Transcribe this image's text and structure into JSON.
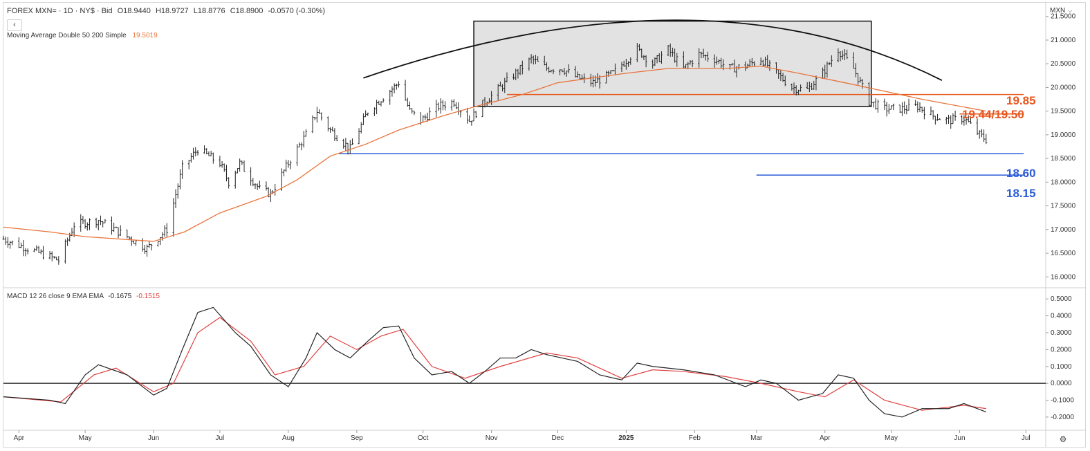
{
  "header": {
    "symbol": "FOREX MXN= · 1D · NY$ · Bid",
    "open": "O18.9440",
    "high": "H18.9727",
    "low": "L18.8776",
    "close": "C18.8900",
    "change": "-0.0570 (-0.30%)",
    "collapse_glyph": "‹"
  },
  "ma_legend": {
    "label": "Moving Average Double 50 200 Simple",
    "value": "19.5019"
  },
  "macd_legend": {
    "label": "MACD 12 26 close 9 EMA EMA",
    "macd_value": "-0.1675",
    "signal_value": "-0.1515"
  },
  "currency_selector": {
    "label": "MXN",
    "icon": "chevron-down-icon"
  },
  "settings_icon": "gear-icon",
  "colors": {
    "price_bars": "#222222",
    "ma": "#e8743b",
    "macd": "#222222",
    "signal": "#e04040",
    "level_orange": "#e8541a",
    "level_blue": "#2a5bd7",
    "box_fill": "#e2e2e2"
  },
  "annotations": [
    {
      "text": "19.85",
      "color": "#e8541a"
    },
    {
      "text": "19.44/19.50",
      "color": "#e8541a"
    },
    {
      "text": "18.60",
      "color": "#2a5bd7"
    },
    {
      "text": "18.15",
      "color": "#2a5bd7"
    }
  ],
  "chart_data": [
    {
      "type": "ohlc",
      "title": "FOREX MXN= · 1D · NY$ · Bid",
      "x_labels": [
        "Apr",
        "May",
        "Jun",
        "Jul",
        "Aug",
        "Sep",
        "Oct",
        "Nov",
        "Dec",
        "2025",
        "Feb",
        "Mar",
        "Apr",
        "May",
        "Jun",
        "Jul"
      ],
      "y_ticks": [
        "21.5000",
        "21.0000",
        "20.5000",
        "20.0000",
        "19.5000",
        "19.0000",
        "18.5000",
        "18.0000",
        "17.5000",
        "17.0000",
        "16.5000",
        "16.0000"
      ],
      "ylim": [
        15.8,
        21.7
      ],
      "close_path": [
        {
          "date": "2024-03-25",
          "value": 16.8
        },
        {
          "date": "2024-04-05",
          "value": 16.6
        },
        {
          "date": "2024-04-19",
          "value": 16.35
        },
        {
          "date": "2024-04-26",
          "value": 17.1
        },
        {
          "date": "2024-05-07",
          "value": 17.2
        },
        {
          "date": "2024-05-20",
          "value": 16.85
        },
        {
          "date": "2024-05-29",
          "value": 16.6
        },
        {
          "date": "2024-06-07",
          "value": 17.0
        },
        {
          "date": "2024-06-14",
          "value": 18.3
        },
        {
          "date": "2024-06-21",
          "value": 18.7
        },
        {
          "date": "2024-07-01",
          "value": 18.4
        },
        {
          "date": "2024-07-05",
          "value": 18.0
        },
        {
          "date": "2024-07-10",
          "value": 18.4
        },
        {
          "date": "2024-07-19",
          "value": 17.85
        },
        {
          "date": "2024-07-24",
          "value": 17.75
        },
        {
          "date": "2024-08-01",
          "value": 18.4
        },
        {
          "date": "2024-08-09",
          "value": 19.0
        },
        {
          "date": "2024-08-14",
          "value": 19.5
        },
        {
          "date": "2024-08-20",
          "value": 19.1
        },
        {
          "date": "2024-08-29",
          "value": 18.7
        },
        {
          "date": "2024-09-06",
          "value": 19.5
        },
        {
          "date": "2024-09-13",
          "value": 19.8
        },
        {
          "date": "2024-09-20",
          "value": 20.1
        },
        {
          "date": "2024-09-25",
          "value": 19.5
        },
        {
          "date": "2024-09-30",
          "value": 19.3
        },
        {
          "date": "2024-10-08",
          "value": 19.6
        },
        {
          "date": "2024-10-15",
          "value": 19.7
        },
        {
          "date": "2024-10-22",
          "value": 19.3
        },
        {
          "date": "2024-10-29",
          "value": 19.7
        },
        {
          "date": "2024-11-05",
          "value": 20.0
        },
        {
          "date": "2024-11-12",
          "value": 20.3
        },
        {
          "date": "2024-11-19",
          "value": 20.6
        },
        {
          "date": "2024-11-26",
          "value": 20.4
        },
        {
          "date": "2024-12-03",
          "value": 20.4
        },
        {
          "date": "2024-12-10",
          "value": 20.2
        },
        {
          "date": "2024-12-17",
          "value": 20.1
        },
        {
          "date": "2024-12-26",
          "value": 20.3
        },
        {
          "date": "2025-01-06",
          "value": 20.8
        },
        {
          "date": "2025-01-13",
          "value": 20.5
        },
        {
          "date": "2025-01-20",
          "value": 20.8
        },
        {
          "date": "2025-01-27",
          "value": 20.4
        },
        {
          "date": "2025-02-03",
          "value": 20.7
        },
        {
          "date": "2025-02-10",
          "value": 20.6
        },
        {
          "date": "2025-02-17",
          "value": 20.4
        },
        {
          "date": "2025-02-24",
          "value": 20.45
        },
        {
          "date": "2025-03-03",
          "value": 20.6
        },
        {
          "date": "2025-03-10",
          "value": 20.3
        },
        {
          "date": "2025-03-17",
          "value": 20.0
        },
        {
          "date": "2025-03-24",
          "value": 19.95
        },
        {
          "date": "2025-03-31",
          "value": 20.3
        },
        {
          "date": "2025-04-07",
          "value": 20.8
        },
        {
          "date": "2025-04-14",
          "value": 20.4
        },
        {
          "date": "2025-04-21",
          "value": 19.7
        },
        {
          "date": "2025-04-28",
          "value": 19.55
        },
        {
          "date": "2025-05-06",
          "value": 19.55
        },
        {
          "date": "2025-05-13",
          "value": 19.6
        },
        {
          "date": "2025-05-20",
          "value": 19.4
        },
        {
          "date": "2025-05-27",
          "value": 19.3
        },
        {
          "date": "2025-06-03",
          "value": 19.35
        },
        {
          "date": "2025-06-10",
          "value": 19.0
        },
        {
          "date": "2025-06-13",
          "value": 18.9
        }
      ],
      "series": [
        {
          "name": "Moving Average Double 50 200 Simple",
          "values": [
            {
              "date": "2024-03-25",
              "value": 17.05
            },
            {
              "date": "2024-04-15",
              "value": 16.95
            },
            {
              "date": "2024-05-01",
              "value": 16.85
            },
            {
              "date": "2024-06-01",
              "value": 16.75
            },
            {
              "date": "2024-06-15",
              "value": 16.95
            },
            {
              "date": "2024-07-01",
              "value": 17.35
            },
            {
              "date": "2024-07-22",
              "value": 17.7
            },
            {
              "date": "2024-08-05",
              "value": 18.05
            },
            {
              "date": "2024-08-20",
              "value": 18.55
            },
            {
              "date": "2024-09-05",
              "value": 18.8
            },
            {
              "date": "2024-09-20",
              "value": 19.1
            },
            {
              "date": "2024-10-10",
              "value": 19.4
            },
            {
              "date": "2024-10-25",
              "value": 19.6
            },
            {
              "date": "2024-11-15",
              "value": 19.85
            },
            {
              "date": "2024-12-01",
              "value": 20.1
            },
            {
              "date": "2025-01-01",
              "value": 20.3
            },
            {
              "date": "2025-01-20",
              "value": 20.4
            },
            {
              "date": "2025-02-15",
              "value": 20.4
            },
            {
              "date": "2025-03-03",
              "value": 20.45
            },
            {
              "date": "2025-03-20",
              "value": 20.3
            },
            {
              "date": "2025-04-10",
              "value": 20.1
            },
            {
              "date": "2025-04-25",
              "value": 19.95
            },
            {
              "date": "2025-05-15",
              "value": 19.75
            },
            {
              "date": "2025-06-13",
              "value": 19.5
            }
          ]
        }
      ],
      "annotations": {
        "box": {
          "from": "2024-10-24",
          "to": "2025-04-22",
          "low": 19.6,
          "high": 21.4
        },
        "arc": {
          "from": "2024-09-04",
          "to": "2025-05-24",
          "peak_date": "2025-01-25",
          "peak_value": 21.42
        },
        "levels": [
          {
            "value": 19.85,
            "from": "2024-11-08",
            "to": "2025-06-30",
            "label": "19.85"
          },
          {
            "value": 19.44,
            "from": "2025-06-01",
            "to": "2025-06-30",
            "label": "19.44/19.50"
          },
          {
            "value": 18.6,
            "from": "2024-08-24",
            "to": "2025-06-30",
            "label": "18.60"
          },
          {
            "value": 18.15,
            "from": "2025-03-01",
            "to": "2025-06-30",
            "label": "18.15"
          }
        ]
      }
    },
    {
      "type": "line",
      "title": "MACD 12 26 close 9 EMA EMA",
      "y_ticks": [
        "0.5000",
        "0.4000",
        "0.3000",
        "0.2000",
        "0.1000",
        "0.0000",
        "-0.1000",
        "-0.2000"
      ],
      "ylim": [
        -0.27,
        0.55
      ],
      "zero_line": true,
      "series": [
        {
          "name": "MACD",
          "values": [
            {
              "date": "2024-03-25",
              "value": -0.08
            },
            {
              "date": "2024-04-15",
              "value": -0.1
            },
            {
              "date": "2024-04-22",
              "value": -0.12
            },
            {
              "date": "2024-05-01",
              "value": 0.05
            },
            {
              "date": "2024-05-07",
              "value": 0.11
            },
            {
              "date": "2024-05-20",
              "value": 0.05
            },
            {
              "date": "2024-06-01",
              "value": -0.07
            },
            {
              "date": "2024-06-07",
              "value": -0.03
            },
            {
              "date": "2024-06-14",
              "value": 0.2
            },
            {
              "date": "2024-06-21",
              "value": 0.42
            },
            {
              "date": "2024-06-28",
              "value": 0.45
            },
            {
              "date": "2024-07-08",
              "value": 0.3
            },
            {
              "date": "2024-07-15",
              "value": 0.22
            },
            {
              "date": "2024-07-24",
              "value": 0.05
            },
            {
              "date": "2024-08-01",
              "value": -0.02
            },
            {
              "date": "2024-08-09",
              "value": 0.15
            },
            {
              "date": "2024-08-14",
              "value": 0.3
            },
            {
              "date": "2024-08-22",
              "value": 0.2
            },
            {
              "date": "2024-08-29",
              "value": 0.15
            },
            {
              "date": "2024-09-06",
              "value": 0.25
            },
            {
              "date": "2024-09-13",
              "value": 0.33
            },
            {
              "date": "2024-09-20",
              "value": 0.34
            },
            {
              "date": "2024-09-27",
              "value": 0.15
            },
            {
              "date": "2024-10-05",
              "value": 0.05
            },
            {
              "date": "2024-10-14",
              "value": 0.07
            },
            {
              "date": "2024-10-22",
              "value": 0.0
            },
            {
              "date": "2024-10-29",
              "value": 0.07
            },
            {
              "date": "2024-11-05",
              "value": 0.15
            },
            {
              "date": "2024-11-12",
              "value": 0.15
            },
            {
              "date": "2024-11-19",
              "value": 0.2
            },
            {
              "date": "2024-11-26",
              "value": 0.17
            },
            {
              "date": "2024-12-10",
              "value": 0.13
            },
            {
              "date": "2024-12-20",
              "value": 0.05
            },
            {
              "date": "2024-12-30",
              "value": 0.02
            },
            {
              "date": "2025-01-06",
              "value": 0.12
            },
            {
              "date": "2025-01-13",
              "value": 0.1
            },
            {
              "date": "2025-01-27",
              "value": 0.08
            },
            {
              "date": "2025-02-10",
              "value": 0.05
            },
            {
              "date": "2025-02-24",
              "value": -0.02
            },
            {
              "date": "2025-03-03",
              "value": 0.02
            },
            {
              "date": "2025-03-10",
              "value": 0.0
            },
            {
              "date": "2025-03-20",
              "value": -0.1
            },
            {
              "date": "2025-03-31",
              "value": -0.06
            },
            {
              "date": "2025-04-07",
              "value": 0.05
            },
            {
              "date": "2025-04-14",
              "value": 0.03
            },
            {
              "date": "2025-04-21",
              "value": -0.1
            },
            {
              "date": "2025-04-28",
              "value": -0.18
            },
            {
              "date": "2025-05-06",
              "value": -0.2
            },
            {
              "date": "2025-05-15",
              "value": -0.15
            },
            {
              "date": "2025-05-27",
              "value": -0.15
            },
            {
              "date": "2025-06-03",
              "value": -0.12
            },
            {
              "date": "2025-06-13",
              "value": -0.17
            }
          ]
        },
        {
          "name": "Signal",
          "values": [
            {
              "date": "2024-03-25",
              "value": -0.08
            },
            {
              "date": "2024-04-20",
              "value": -0.11
            },
            {
              "date": "2024-05-05",
              "value": 0.05
            },
            {
              "date": "2024-05-15",
              "value": 0.09
            },
            {
              "date": "2024-06-01",
              "value": -0.05
            },
            {
              "date": "2024-06-10",
              "value": 0.0
            },
            {
              "date": "2024-06-21",
              "value": 0.3
            },
            {
              "date": "2024-07-01",
              "value": 0.39
            },
            {
              "date": "2024-07-15",
              "value": 0.25
            },
            {
              "date": "2024-07-26",
              "value": 0.05
            },
            {
              "date": "2024-08-08",
              "value": 0.1
            },
            {
              "date": "2024-08-20",
              "value": 0.28
            },
            {
              "date": "2024-09-01",
              "value": 0.2
            },
            {
              "date": "2024-09-12",
              "value": 0.28
            },
            {
              "date": "2024-09-22",
              "value": 0.32
            },
            {
              "date": "2024-10-05",
              "value": 0.1
            },
            {
              "date": "2024-10-20",
              "value": 0.03
            },
            {
              "date": "2024-11-05",
              "value": 0.1
            },
            {
              "date": "2024-11-26",
              "value": 0.18
            },
            {
              "date": "2024-12-10",
              "value": 0.15
            },
            {
              "date": "2024-12-30",
              "value": 0.03
            },
            {
              "date": "2025-01-13",
              "value": 0.08
            },
            {
              "date": "2025-01-27",
              "value": 0.07
            },
            {
              "date": "2025-02-15",
              "value": 0.04
            },
            {
              "date": "2025-03-03",
              "value": 0.0
            },
            {
              "date": "2025-03-20",
              "value": -0.05
            },
            {
              "date": "2025-04-01",
              "value": -0.08
            },
            {
              "date": "2025-04-14",
              "value": 0.02
            },
            {
              "date": "2025-04-28",
              "value": -0.1
            },
            {
              "date": "2025-05-15",
              "value": -0.16
            },
            {
              "date": "2025-06-03",
              "value": -0.13
            },
            {
              "date": "2025-06-13",
              "value": -0.15
            }
          ]
        }
      ]
    }
  ]
}
